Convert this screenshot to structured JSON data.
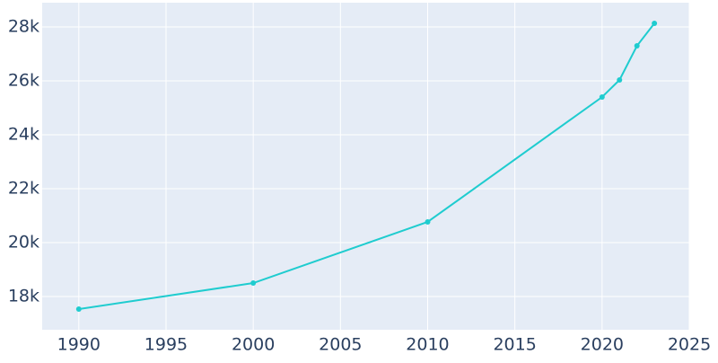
{
  "chart_data": {
    "type": "line",
    "x": [
      1990,
      2000,
      2010,
      2020,
      2021,
      2022,
      2023
    ],
    "series": [
      {
        "color": "#1fcccf",
        "values": [
          17533,
          18500,
          20767,
          25400,
          26033,
          27300,
          28133
        ]
      }
    ],
    "xlim": [
      1987.9,
      2025
    ],
    "xticks": [
      1990,
      1995,
      2000,
      2005,
      2010,
      2015,
      2020,
      2025
    ],
    "ylim": [
      16767,
      28900
    ],
    "yticks": [
      {
        "value": 18000,
        "label": "18k"
      },
      {
        "value": 20000,
        "label": "20k"
      },
      {
        "value": 22000,
        "label": "22k"
      },
      {
        "value": 24000,
        "label": "24k"
      },
      {
        "value": 26000,
        "label": "26k"
      },
      {
        "value": 28000,
        "label": "28k"
      }
    ],
    "grid": true
  }
}
